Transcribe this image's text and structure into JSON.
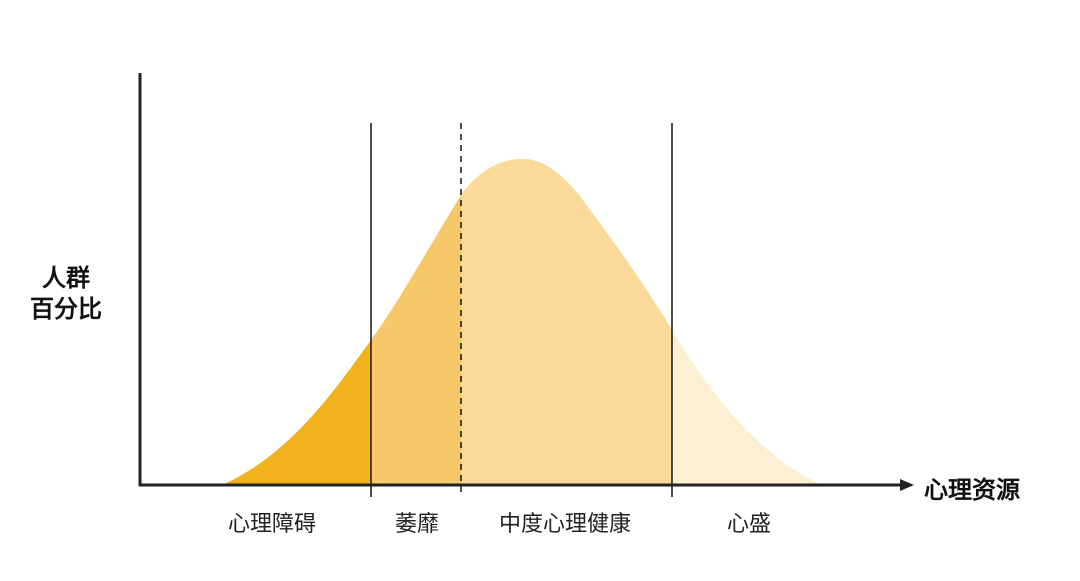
{
  "diagram": {
    "y_axis_label": [
      "人群",
      "百分比"
    ],
    "x_axis_label": "心理资源",
    "regions": [
      {
        "label": "心理障碍",
        "fill": "#F2B21E"
      },
      {
        "label": "萎靡",
        "fill": "#F7C86A"
      },
      {
        "label": "中度心理健康",
        "fill": "#FAD99A"
      },
      {
        "label": "心盛",
        "fill": "#FDEFD4"
      }
    ],
    "divider_styles": [
      "solid",
      "dashed",
      "solid"
    ],
    "axis_color": "#222222"
  }
}
